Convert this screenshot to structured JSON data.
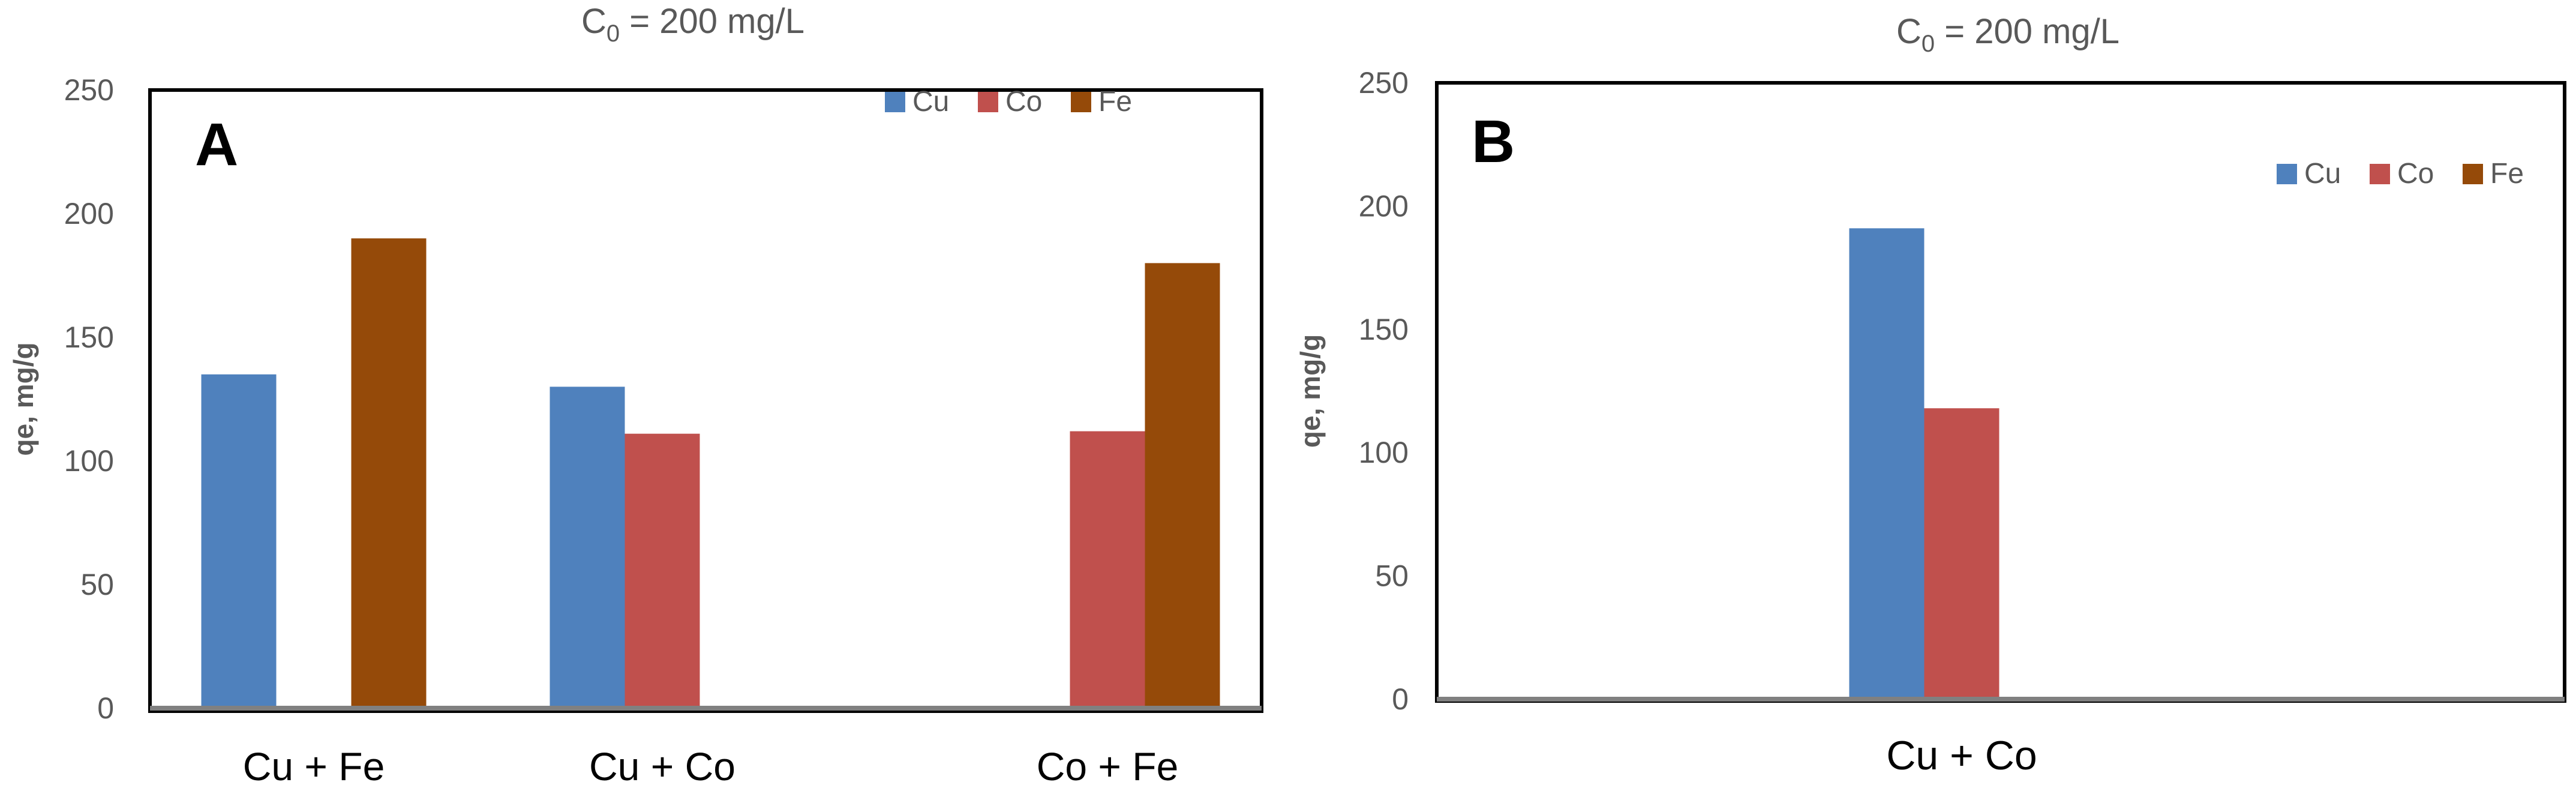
{
  "colors": {
    "Cu": "#4F81BD",
    "Co": "#C0504D",
    "Fe": "#954A09",
    "axis": "#808080",
    "text": "#595959",
    "frame": "#000000"
  },
  "chart_data": [
    {
      "type": "bar",
      "panel_label": "A",
      "title": {
        "prefix": "C",
        "subscript": "0",
        "rest": " = 200 mg/L"
      },
      "ylabel": "qe, mg/g",
      "xlabel": "",
      "ylim": [
        0,
        250
      ],
      "yticks": [
        "0",
        "50",
        "100",
        "150",
        "200",
        "250"
      ],
      "categories": [
        "Cu + Fe",
        "Cu + Co",
        "Co + Fe"
      ],
      "series": [
        {
          "name": "Cu",
          "values": [
            135,
            130,
            null
          ]
        },
        {
          "name": "Co",
          "values": [
            null,
            111,
            112
          ]
        },
        {
          "name": "Fe",
          "values": [
            190,
            null,
            180
          ]
        }
      ],
      "legend": "top-right",
      "grid": false
    },
    {
      "type": "bar",
      "panel_label": "B",
      "title": {
        "prefix": "C",
        "subscript": "0",
        "rest": " = 200 mg/L"
      },
      "ylabel": "qe, mg/g",
      "xlabel": "",
      "ylim": [
        0,
        250
      ],
      "yticks": [
        "0",
        "50",
        "100",
        "150",
        "200",
        "250"
      ],
      "categories": [
        "Cu + Co"
      ],
      "series": [
        {
          "name": "Cu",
          "values": [
            191
          ]
        },
        {
          "name": "Co",
          "values": [
            118
          ]
        },
        {
          "name": "Fe",
          "values": [
            null
          ]
        }
      ],
      "legend": "top-right",
      "grid": false
    }
  ]
}
